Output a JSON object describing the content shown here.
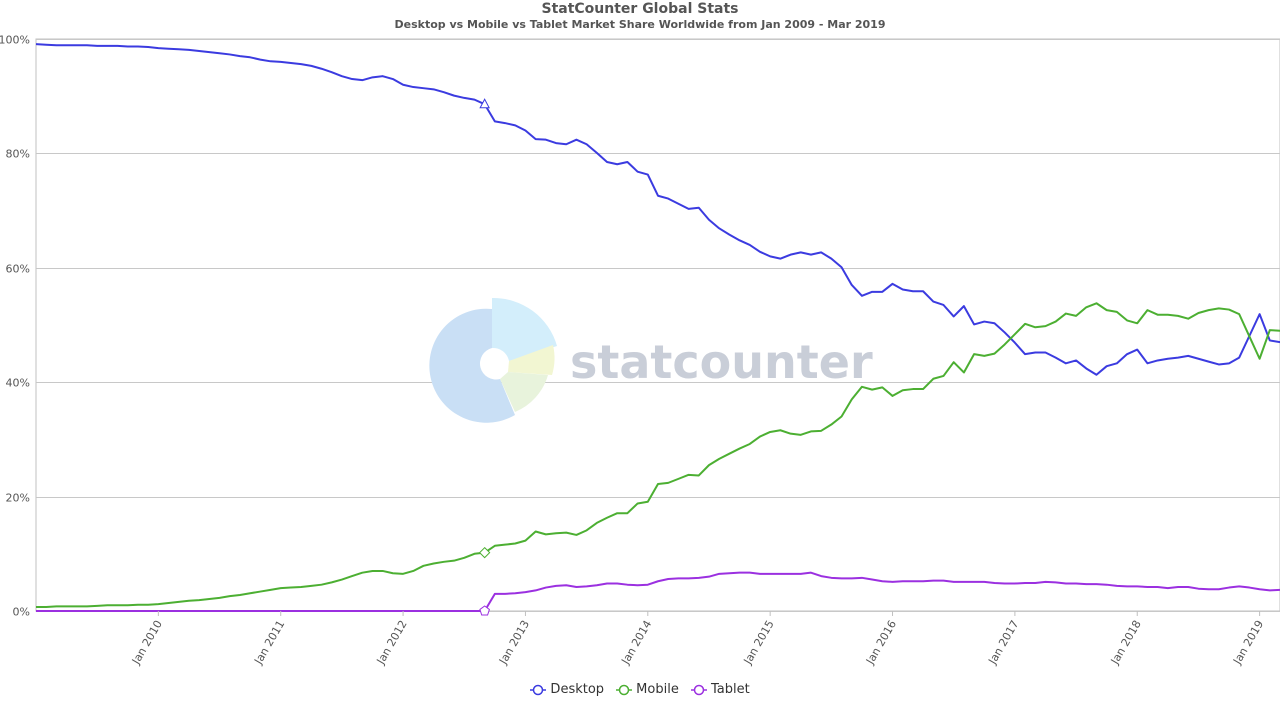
{
  "chart_data": {
    "type": "line",
    "title": "StatCounter Global Stats",
    "subtitle": "Desktop vs Mobile vs Tablet Market Share Worldwide from Jan 2009 - Mar 2019",
    "watermark": "statcounter",
    "x_start": "2009-01",
    "x_end": "2019-03",
    "x_ticks": [
      "Jan 2010",
      "Jan 2011",
      "Jan 2012",
      "Jan 2013",
      "Jan 2014",
      "Jan 2015",
      "Jan 2016",
      "Jan 2017",
      "Jan 2018",
      "Jan 2019"
    ],
    "y_ticks": [
      "0%",
      "20%",
      "40%",
      "60%",
      "80%",
      "100%"
    ],
    "ylim": [
      0,
      100
    ],
    "grid": true,
    "legend_position": "bottom",
    "series": [
      {
        "name": "Desktop",
        "color": "#3b3be0",
        "start": "2009-01",
        "values": [
          99.1,
          99.0,
          98.9,
          98.9,
          98.9,
          98.9,
          98.8,
          98.8,
          98.8,
          98.7,
          98.7,
          98.6,
          98.4,
          98.3,
          98.2,
          98.1,
          97.9,
          97.7,
          97.5,
          97.3,
          97.0,
          96.8,
          96.4,
          96.1,
          96.0,
          95.8,
          95.6,
          95.3,
          94.8,
          94.2,
          93.5,
          93.0,
          92.8,
          93.3,
          93.5,
          93.0,
          92.0,
          91.6,
          91.4,
          91.2,
          90.7,
          90.1,
          89.7,
          89.4,
          88.6,
          85.6,
          85.3,
          84.9,
          84.0,
          82.5,
          82.4,
          81.8,
          81.6,
          82.4,
          81.6,
          80.1,
          78.5,
          78.1,
          78.5,
          76.8,
          76.3,
          72.6,
          72.1,
          71.2,
          70.3,
          70.5,
          68.4,
          66.9,
          65.8,
          64.8,
          64.0,
          62.8,
          62.0,
          61.6,
          62.3,
          62.7,
          62.3,
          62.7,
          61.6,
          60.1,
          57.0,
          55.1,
          55.8,
          55.8,
          57.2,
          56.2,
          55.9,
          55.9,
          54.1,
          53.5,
          51.5,
          53.3,
          50.1,
          50.6,
          50.3,
          48.7,
          46.9,
          44.9,
          45.2,
          45.2,
          44.3,
          43.3,
          43.8,
          42.4,
          41.3,
          42.8,
          43.3,
          44.9,
          45.7,
          43.3,
          43.8,
          44.1,
          44.3,
          44.6,
          44.1,
          43.6,
          43.1,
          43.3,
          44.3,
          48.1,
          51.9,
          47.3,
          47.0,
          47.8,
          46.5
        ]
      },
      {
        "name": "Mobile",
        "color": "#4caf32",
        "start": "2009-01",
        "values": [
          0.7,
          0.7,
          0.8,
          0.8,
          0.8,
          0.8,
          0.9,
          1.0,
          1.0,
          1.0,
          1.1,
          1.1,
          1.2,
          1.4,
          1.6,
          1.8,
          1.9,
          2.1,
          2.3,
          2.6,
          2.8,
          3.1,
          3.4,
          3.7,
          4.0,
          4.1,
          4.2,
          4.4,
          4.6,
          5.0,
          5.5,
          6.1,
          6.7,
          7.0,
          7.0,
          6.6,
          6.5,
          7.0,
          7.9,
          8.3,
          8.6,
          8.8,
          9.3,
          10.0,
          10.2,
          11.4,
          11.6,
          11.8,
          12.3,
          13.9,
          13.4,
          13.6,
          13.7,
          13.3,
          14.1,
          15.4,
          16.3,
          17.1,
          17.1,
          18.8,
          19.1,
          22.2,
          22.4,
          23.1,
          23.8,
          23.7,
          25.5,
          26.6,
          27.5,
          28.4,
          29.2,
          30.5,
          31.3,
          31.6,
          31.0,
          30.8,
          31.4,
          31.5,
          32.6,
          34.0,
          37.0,
          39.2,
          38.7,
          39.1,
          37.6,
          38.6,
          38.8,
          38.8,
          40.6,
          41.1,
          43.5,
          41.7,
          44.9,
          44.6,
          45.0,
          46.6,
          48.4,
          50.2,
          49.6,
          49.8,
          50.6,
          52.0,
          51.6,
          53.1,
          53.8,
          52.6,
          52.3,
          50.8,
          50.3,
          52.6,
          51.8,
          51.8,
          51.6,
          51.1,
          52.1,
          52.6,
          52.9,
          52.7,
          51.9,
          48.0,
          44.1,
          49.1,
          49.0,
          48.2,
          49.5
        ]
      },
      {
        "name": "Tablet",
        "color": "#9b30e0",
        "start": "2009-01",
        "values": [
          0,
          0,
          0,
          0,
          0,
          0,
          0,
          0,
          0,
          0,
          0,
          0,
          0,
          0,
          0,
          0,
          0,
          0,
          0,
          0,
          0,
          0,
          0,
          0,
          0,
          0,
          0,
          0,
          0,
          0,
          0,
          0,
          0,
          0,
          0,
          0,
          0,
          0,
          0,
          0,
          0,
          0,
          0,
          0,
          0,
          3.0,
          3.0,
          3.1,
          3.3,
          3.6,
          4.1,
          4.4,
          4.5,
          4.2,
          4.3,
          4.5,
          4.8,
          4.8,
          4.6,
          4.5,
          4.6,
          5.2,
          5.6,
          5.7,
          5.7,
          5.8,
          6.0,
          6.5,
          6.6,
          6.7,
          6.7,
          6.5,
          6.5,
          6.5,
          6.5,
          6.5,
          6.7,
          6.1,
          5.8,
          5.7,
          5.7,
          5.8,
          5.5,
          5.2,
          5.1,
          5.2,
          5.2,
          5.2,
          5.3,
          5.3,
          5.1,
          5.1,
          5.1,
          5.1,
          4.9,
          4.8,
          4.8,
          4.9,
          4.9,
          5.1,
          5.0,
          4.8,
          4.8,
          4.7,
          4.7,
          4.6,
          4.4,
          4.3,
          4.3,
          4.2,
          4.2,
          4.0,
          4.2,
          4.2,
          3.9,
          3.8,
          3.8,
          4.1,
          4.3,
          4.1,
          3.8,
          3.6,
          3.7,
          3.8,
          4.0
        ]
      }
    ]
  }
}
